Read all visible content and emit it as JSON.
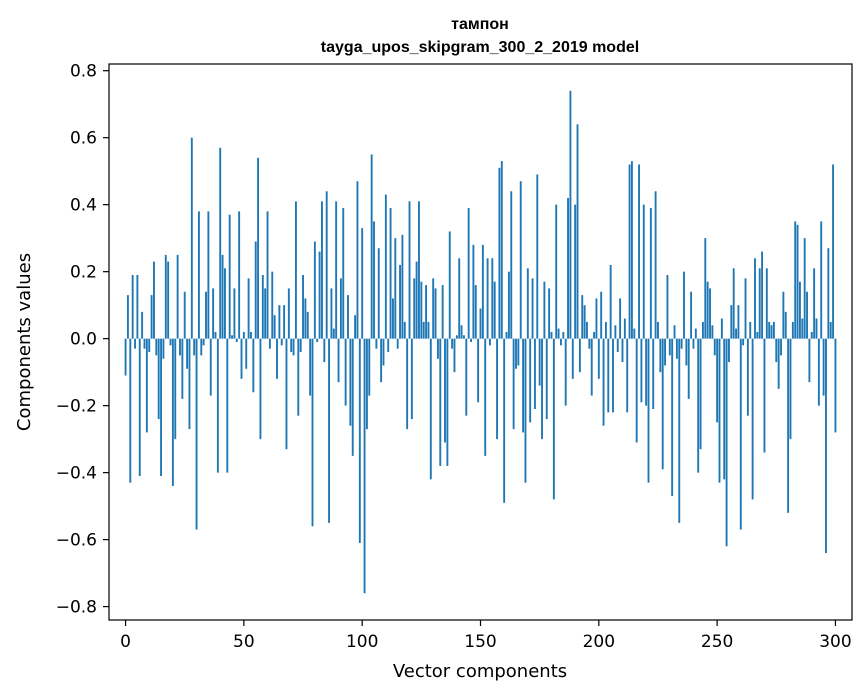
{
  "chart_data": {
    "type": "bar",
    "title": "тампон",
    "subtitle": "tayga_upos_skipgram_300_2_2019 model",
    "xlabel": "Vector components",
    "ylabel": "Components values",
    "xlim": [
      -7,
      307
    ],
    "ylim": [
      -0.84,
      0.82
    ],
    "xticks": [
      0,
      50,
      100,
      150,
      200,
      250,
      300
    ],
    "xtick_labels": [
      "0",
      "50",
      "100",
      "150",
      "200",
      "250",
      "300"
    ],
    "yticks": [
      -0.8,
      -0.6,
      -0.4,
      -0.2,
      0.0,
      0.2,
      0.4,
      0.6,
      0.8
    ],
    "ytick_labels": [
      "−0.8",
      "−0.6",
      "−0.4",
      "−0.2",
      "0.0",
      "0.2",
      "0.4",
      "0.6",
      "0.8"
    ],
    "bar_color": "#1f77b4",
    "grid": false,
    "values": [
      -0.11,
      0.13,
      -0.43,
      0.19,
      -0.03,
      0.19,
      -0.41,
      0.08,
      -0.03,
      -0.28,
      -0.04,
      0.13,
      0.23,
      -0.05,
      -0.24,
      -0.41,
      -0.06,
      0.25,
      0.23,
      -0.02,
      -0.44,
      -0.3,
      0.25,
      -0.05,
      -0.18,
      0.14,
      -0.09,
      -0.27,
      0.6,
      -0.05,
      -0.57,
      0.38,
      -0.05,
      -0.02,
      0.14,
      0.38,
      -0.17,
      0.15,
      0.02,
      -0.4,
      0.57,
      0.25,
      0.21,
      -0.4,
      0.37,
      0.01,
      0.15,
      -0.01,
      0.38,
      -0.12,
      0.02,
      -0.09,
      0.18,
      0.02,
      -0.16,
      0.29,
      0.54,
      -0.3,
      0.19,
      0.15,
      0.38,
      -0.03,
      0.2,
      0.07,
      -0.12,
      0.1,
      -0.02,
      0.1,
      -0.33,
      0.15,
      -0.04,
      -0.05,
      0.41,
      -0.23,
      -0.04,
      0.19,
      0.12,
      0.08,
      -0.17,
      -0.56,
      0.29,
      -0.01,
      0.26,
      0.41,
      -0.07,
      0.44,
      -0.55,
      0.15,
      0.03,
      0.41,
      -0.13,
      0.18,
      0.39,
      -0.2,
      0.13,
      -0.26,
      -0.35,
      0.07,
      0.47,
      -0.61,
      0.33,
      -0.76,
      -0.27,
      -0.17,
      0.55,
      0.35,
      -0.03,
      0.27,
      -0.13,
      -0.08,
      0.43,
      -0.04,
      0.39,
      0.12,
      0.3,
      -0.03,
      0.22,
      0.31,
      0.05,
      -0.27,
      0.41,
      -0.24,
      0.18,
      0.23,
      0.41,
      0.17,
      0.05,
      0.16,
      0.05,
      -0.42,
      0.18,
      0.15,
      -0.06,
      -0.38,
      0.16,
      -0.31,
      -0.38,
      0.32,
      -0.03,
      -0.1,
      0.01,
      0.24,
      0.04,
      0.01,
      -0.23,
      0.39,
      -0.01,
      0.28,
      0.16,
      -0.19,
      0.09,
      0.28,
      -0.35,
      0.24,
      -0.02,
      0.24,
      0.17,
      -0.3,
      0.51,
      0.53,
      -0.49,
      0.02,
      0.2,
      0.44,
      -0.27,
      -0.09,
      -0.08,
      0.47,
      -0.28,
      -0.43,
      0.21,
      -0.25,
      0.18,
      -0.21,
      0.49,
      -0.14,
      -0.3,
      0.17,
      -0.24,
      0.15,
      0.02,
      -0.48,
      0.4,
      0.03,
      -0.02,
      0.02,
      -0.2,
      0.42,
      0.74,
      -0.12,
      0.4,
      0.64,
      -0.1,
      0.13,
      0.1,
      0.05,
      -0.03,
      -0.17,
      0.02,
      0.12,
      -0.12,
      0.14,
      -0.26,
      0.05,
      -0.22,
      0.22,
      -0.22,
      0.04,
      -0.04,
      0.12,
      -0.07,
      0.06,
      -0.22,
      0.52,
      0.53,
      0.03,
      -0.31,
      0.52,
      -0.19,
      0.4,
      -0.2,
      -0.43,
      0.39,
      -0.21,
      0.44,
      0.05,
      -0.1,
      -0.39,
      -0.08,
      0.19,
      -0.05,
      -0.47,
      0.04,
      -0.06,
      -0.55,
      -0.03,
      0.2,
      -0.08,
      -0.18,
      0.14,
      -0.03,
      0.03,
      -0.4,
      -0.33,
      0.05,
      0.3,
      0.17,
      0.15,
      0.04,
      -0.05,
      -0.25,
      -0.43,
      0.06,
      -0.42,
      -0.62,
      -0.07,
      0.1,
      0.21,
      0.03,
      0.1,
      -0.57,
      -0.02,
      0.18,
      -0.23,
      0.05,
      -0.48,
      0.24,
      0.02,
      0.21,
      0.26,
      -0.34,
      0.21,
      0.05,
      0.04,
      0.05,
      -0.07,
      -0.15,
      -0.05,
      0.14,
      0.08,
      -0.52,
      -0.3,
      0.05,
      0.35,
      0.34,
      0.17,
      0.06,
      0.3,
      0.14,
      -0.13,
      0.02,
      0.21,
      0.06,
      -0.2,
      0.35,
      -0.17,
      -0.64,
      0.27,
      0.05,
      0.52,
      -0.28
    ]
  }
}
